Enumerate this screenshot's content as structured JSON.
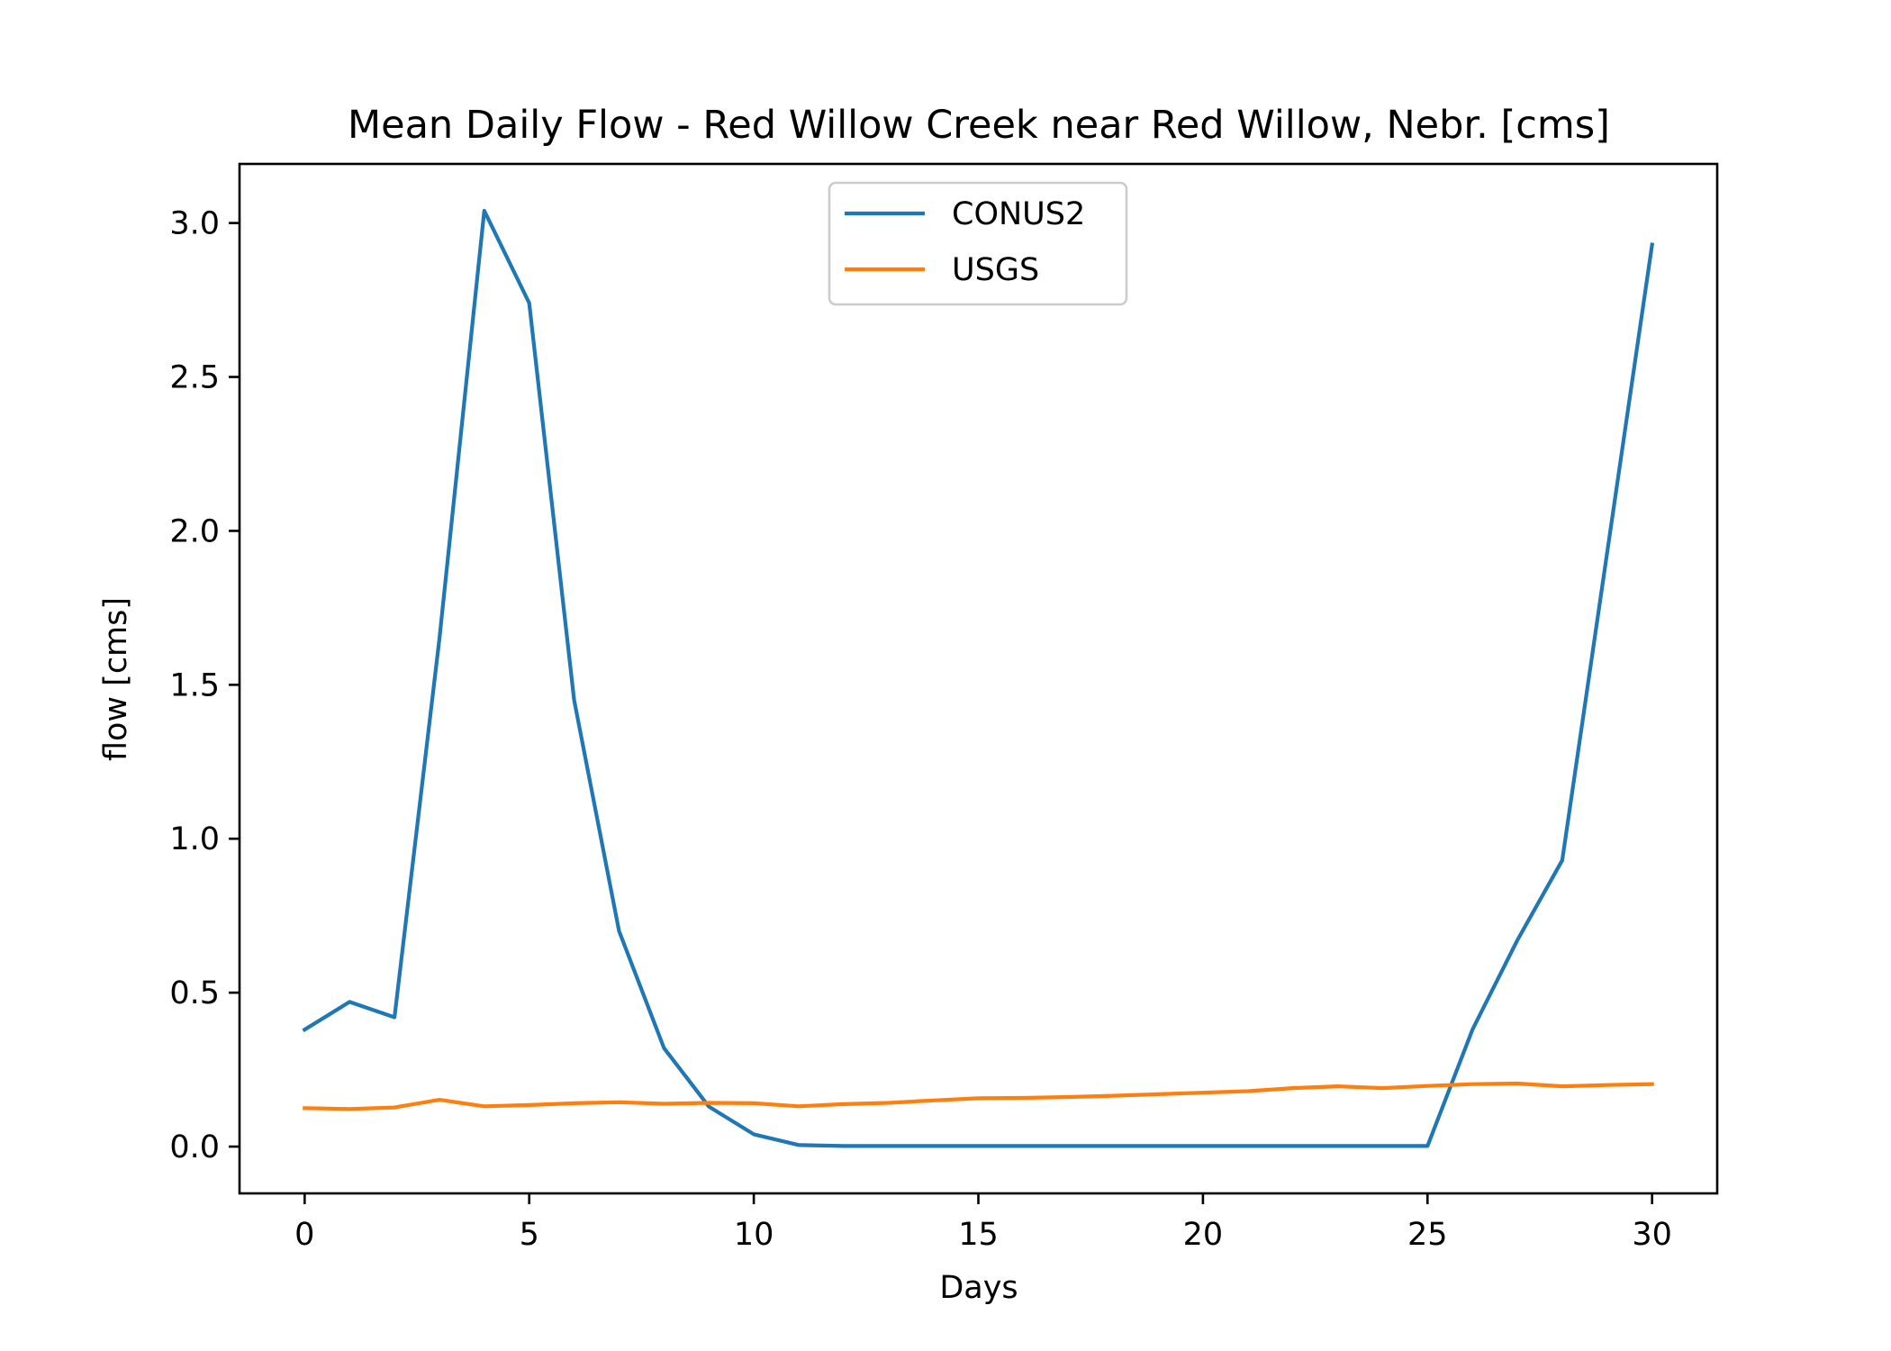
{
  "chart_data": {
    "type": "line",
    "title": "Mean Daily Flow - Red Willow Creek near Red Willow, Nebr. [cms]",
    "xlabel": "Days",
    "ylabel": "flow [cms]",
    "xlim": [
      -1.45,
      31.45
    ],
    "ylim": [
      -0.152,
      3.192
    ],
    "xticks": [
      0,
      5,
      10,
      15,
      20,
      25,
      30
    ],
    "xtick_labels": [
      "0",
      "5",
      "10",
      "15",
      "20",
      "25",
      "30"
    ],
    "yticks": [
      0.0,
      0.5,
      1.0,
      1.5,
      2.0,
      2.5,
      3.0
    ],
    "ytick_labels": [
      "0.0",
      "0.5",
      "1.0",
      "1.5",
      "2.0",
      "2.5",
      "3.0"
    ],
    "grid": false,
    "legend": {
      "position": "upper center"
    },
    "x": [
      0,
      1,
      2,
      3,
      4,
      5,
      6,
      7,
      8,
      9,
      10,
      11,
      12,
      13,
      14,
      15,
      16,
      17,
      18,
      19,
      20,
      21,
      22,
      23,
      24,
      25,
      26,
      27,
      28,
      29,
      30
    ],
    "series": [
      {
        "name": "CONUS2",
        "color": "#1f77b4",
        "values": [
          0.38,
          0.47,
          0.42,
          1.65,
          3.04,
          2.74,
          1.45,
          0.7,
          0.32,
          0.13,
          0.04,
          0.005,
          0.002,
          0.002,
          0.002,
          0.002,
          0.002,
          0.002,
          0.002,
          0.002,
          0.002,
          0.002,
          0.002,
          0.002,
          0.002,
          0.002,
          0.38,
          0.67,
          0.93,
          1.93,
          2.93
        ]
      },
      {
        "name": "USGS",
        "color": "#ff7f0e",
        "values": [
          0.125,
          0.122,
          0.127,
          0.152,
          0.131,
          0.135,
          0.141,
          0.144,
          0.139,
          0.142,
          0.141,
          0.131,
          0.138,
          0.142,
          0.15,
          0.157,
          0.158,
          0.161,
          0.165,
          0.17,
          0.175,
          0.18,
          0.19,
          0.196,
          0.19,
          0.197,
          0.203,
          0.205,
          0.196,
          0.2,
          0.203
        ]
      }
    ]
  }
}
